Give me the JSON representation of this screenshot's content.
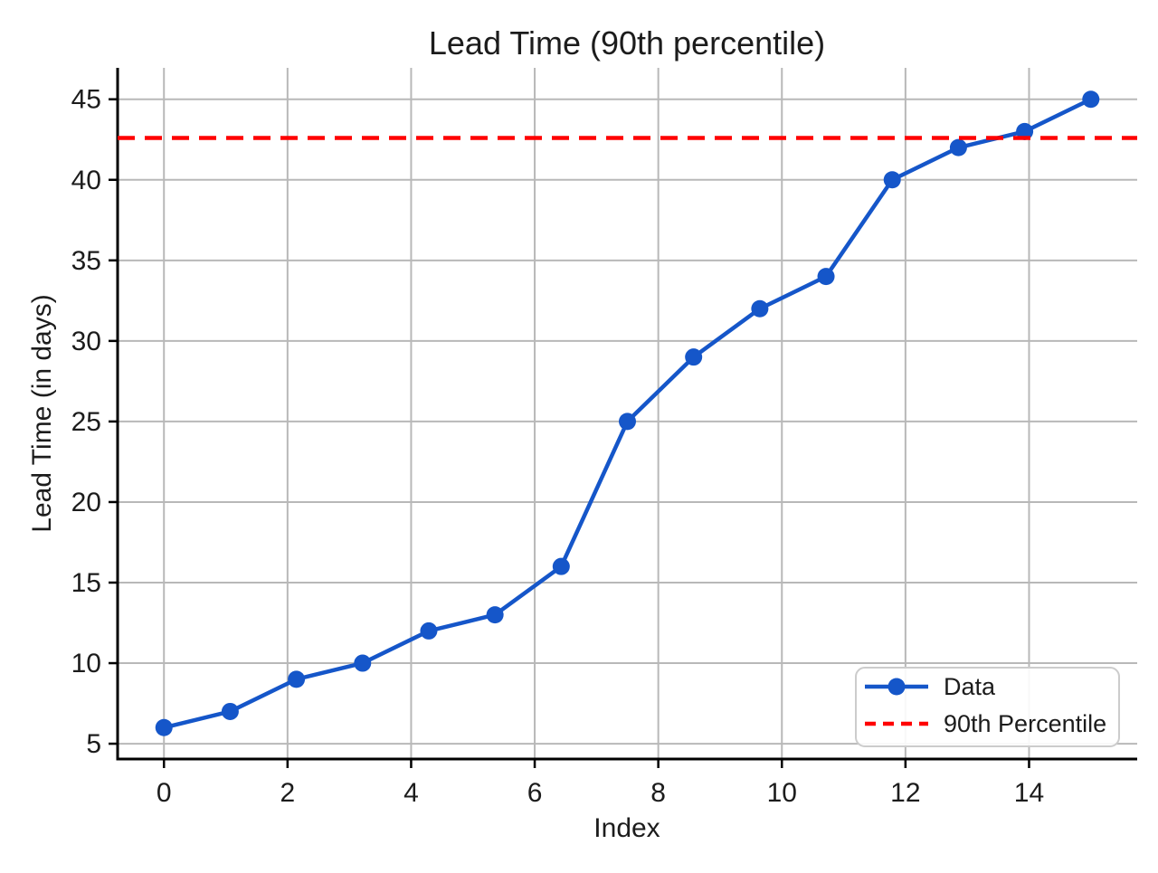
{
  "figure": {
    "background": "#ffffff"
  },
  "chart_data": {
    "type": "line",
    "title": "Lead Time (90th percentile)",
    "xlabel": "Index",
    "ylabel": "Lead Time (in days)",
    "x": [
      0,
      1.0714,
      2.1429,
      3.2143,
      4.2857,
      5.3571,
      6.4286,
      7.5,
      8.5714,
      9.6429,
      10.7143,
      11.7857,
      12.8571,
      13.9286,
      15
    ],
    "series": [
      {
        "name": "Data",
        "kind": "line-markers",
        "color": "#1556c9",
        "values": [
          6,
          7,
          9,
          10,
          12,
          13,
          16,
          25,
          29,
          32,
          34,
          40,
          42,
          43,
          45
        ]
      },
      {
        "name": "90th Percentile",
        "kind": "hline-dashed",
        "color": "#ff0000",
        "value": 42.6
      }
    ],
    "x_ticks": [
      0,
      2,
      4,
      6,
      8,
      10,
      12,
      14
    ],
    "y_ticks": [
      5,
      10,
      15,
      20,
      25,
      30,
      35,
      40,
      45
    ],
    "xlim": [
      -0.75,
      15.75
    ],
    "ylim": [
      4.05,
      46.95
    ],
    "grid": true,
    "legend_position": "lower right",
    "colors": {
      "grid": "#b8b8b8",
      "spine": "#000000",
      "text": "#1c1c1c",
      "legend_border": "#cccccc",
      "legend_background": "#ffffff"
    }
  }
}
